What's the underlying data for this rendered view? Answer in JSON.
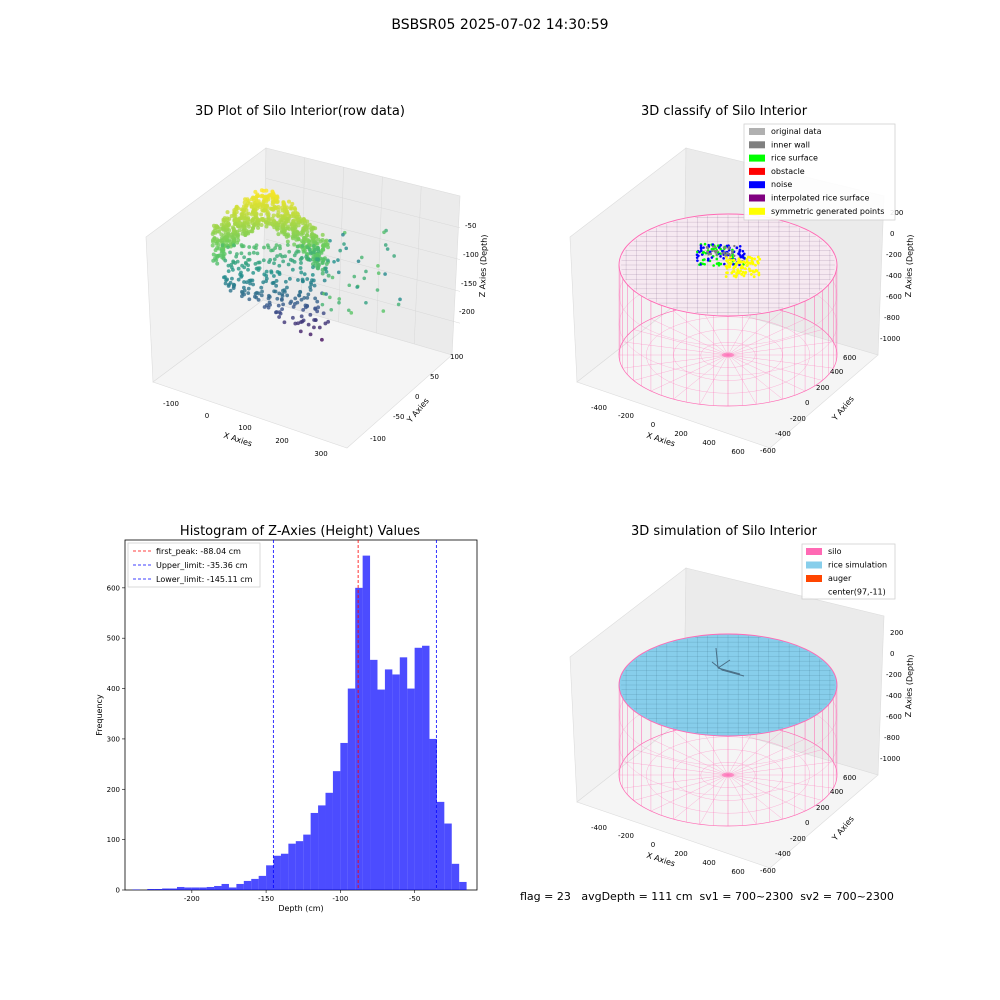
{
  "figure_title": "BSBSR05 2025-07-02 14:30:59",
  "panels": {
    "raw": {
      "title": "3D Plot of Silo Interior(row data)",
      "xlabel": "X Axies",
      "ylabel": "Y Axies",
      "zlabel": "Z Axies (Depth)",
      "x_ticks": [
        "-100",
        "0",
        "100",
        "200",
        "300"
      ],
      "y_ticks": [
        "100",
        "50",
        "0",
        "-50",
        "-100"
      ],
      "z_ticks": [
        "-50",
        "-100",
        "-150",
        "-200"
      ]
    },
    "classify": {
      "title": "3D classify of Silo Interior",
      "xlabel": "X Axies",
      "ylabel": "Y Axies",
      "zlabel": "Z Axies (Depth)",
      "x_ticks": [
        "-400",
        "-200",
        "0",
        "200",
        "400",
        "600"
      ],
      "y_ticks": [
        "600",
        "400",
        "200",
        "0",
        "-200",
        "-400",
        "-600"
      ],
      "z_ticks": [
        "200",
        "0",
        "-200",
        "-400",
        "-600",
        "-800",
        "-1000"
      ],
      "legend": [
        {
          "label": "original data",
          "color": "#b0b0b0"
        },
        {
          "label": "inner wall",
          "color": "#808080"
        },
        {
          "label": "rice surface",
          "color": "#00ff00"
        },
        {
          "label": "obstacle",
          "color": "#ff0000"
        },
        {
          "label": "noise",
          "color": "#0000ff"
        },
        {
          "label": "interpolated rice surface",
          "color": "#800080"
        },
        {
          "label": "symmetric generated points",
          "color": "#ffff00"
        }
      ]
    },
    "histogram": {
      "title": "Histogram of Z-Axies (Height) Values",
      "legend": [
        {
          "label": "first_peak: -88.04 cm",
          "color": "#ff0000"
        },
        {
          "label": "Upper_limit: -35.36 cm",
          "color": "#0000ff"
        },
        {
          "label": "Lower_limit: -145.11 cm",
          "color": "#0000ff"
        }
      ]
    },
    "simulation": {
      "title": "3D simulation of Silo Interior",
      "xlabel": "X Axies",
      "ylabel": "Y Axies",
      "zlabel": "Z Axies (Depth)",
      "x_ticks": [
        "-400",
        "-200",
        "0",
        "200",
        "400",
        "600"
      ],
      "y_ticks": [
        "600",
        "400",
        "200",
        "0",
        "-200",
        "-400",
        "-600"
      ],
      "z_ticks": [
        "200",
        "0",
        "-200",
        "-400",
        "-600",
        "-800",
        "-1000"
      ],
      "legend": [
        {
          "label": "silo",
          "color": "#ff69b4"
        },
        {
          "label": "rice simulation",
          "color": "#87ceeb"
        },
        {
          "label": "auger",
          "color": "#ff4500"
        },
        {
          "label": "center(97,-11)",
          "color": ""
        }
      ]
    }
  },
  "footer": {
    "text": "flag = 23   avgDepth = 111 cm  sv1 = 700~2300  sv2 = 700~2300"
  },
  "chart_data": {
    "type": "bar",
    "title": "Histogram of Z-Axies (Height) Values",
    "xlabel": "Depth (cm)",
    "ylabel": "Frequency",
    "xlim": [
      -245,
      -8
    ],
    "ylim": [
      0,
      695
    ],
    "x_ticks": [
      -200,
      -150,
      -100,
      -50
    ],
    "y_ticks": [
      0,
      100,
      200,
      300,
      400,
      500,
      600
    ],
    "bin_edges": [
      -240,
      -235,
      -230,
      -225,
      -220,
      -215,
      -210,
      -205,
      -200,
      -195,
      -190,
      -185,
      -180,
      -175,
      -170,
      -165,
      -160,
      -155,
      -150,
      -145,
      -140,
      -135,
      -130,
      -125,
      -120,
      -115,
      -110,
      -105,
      -100,
      -95,
      -90,
      -85,
      -80,
      -75,
      -70,
      -65,
      -60,
      -55,
      -50,
      -45,
      -40,
      -35,
      -30,
      -25,
      -20,
      -15,
      -10
    ],
    "values": [
      1,
      0,
      2,
      2,
      3,
      3,
      6,
      5,
      5,
      5,
      6,
      8,
      12,
      5,
      12,
      18,
      22,
      28,
      49,
      68,
      72,
      92,
      97,
      110,
      153,
      168,
      193,
      236,
      292,
      400,
      600,
      664,
      457,
      398,
      438,
      428,
      462,
      400,
      481,
      485,
      300,
      175,
      132,
      52,
      16,
      0
    ],
    "bar_color": "#0000ff",
    "vlines": [
      {
        "name": "first_peak",
        "x": -88.04,
        "color": "#ff0000"
      },
      {
        "name": "Upper_limit",
        "x": -35.36,
        "color": "#0000ff"
      },
      {
        "name": "Lower_limit",
        "x": -145.11,
        "color": "#0000ff"
      }
    ],
    "legend_position": "top-left"
  }
}
